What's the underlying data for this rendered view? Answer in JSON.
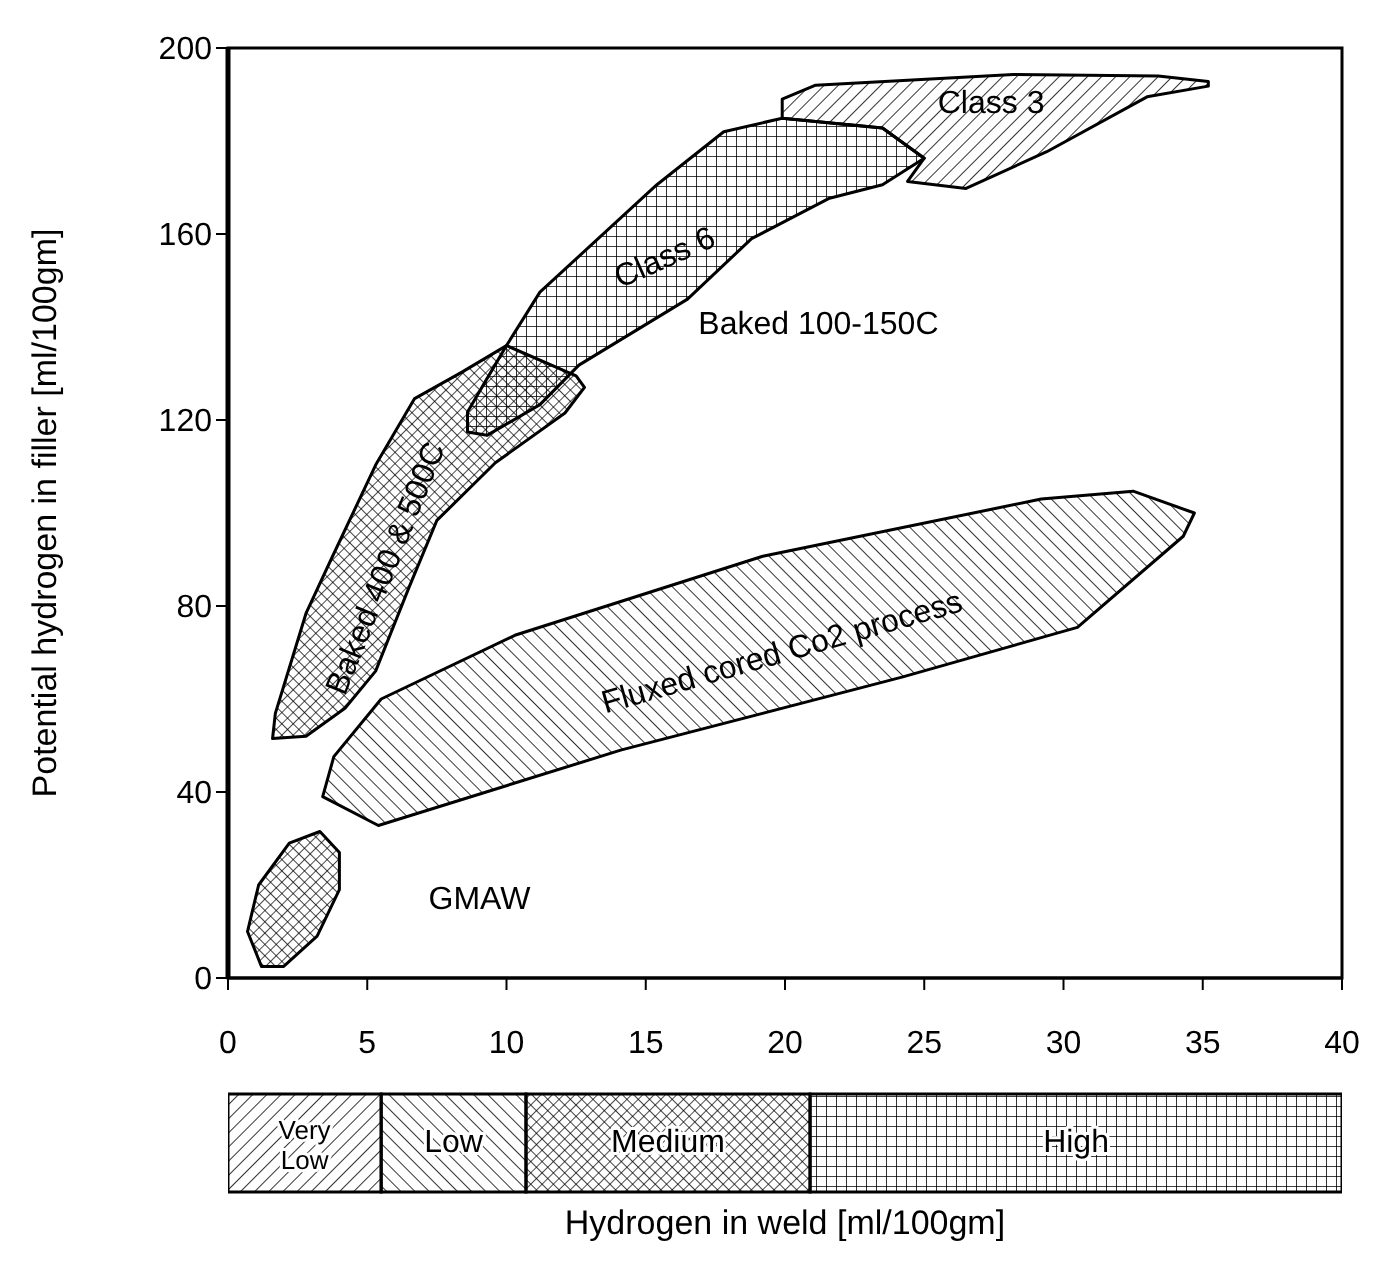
{
  "chart_data": [
    {
      "type": "area",
      "ylabel": "Potential hydrogen in filler [ml/100gm]",
      "xlim": [
        0,
        40
      ],
      "xticks": [
        0,
        5,
        10,
        15,
        20,
        25,
        30,
        35,
        40
      ],
      "ylim": [
        0,
        200
      ],
      "yticks": [
        0,
        40,
        80,
        120,
        160,
        200
      ],
      "series": [
        {
          "color": "#000000",
          "x": [
            19.9,
            21.1,
            28.2,
            33.4,
            35.2,
            35.2,
            33.0,
            29.4,
            26.5,
            24.4,
            25.0,
            23.5,
            19.9
          ],
          "values": [
            189,
            192,
            194.3,
            194,
            192.8,
            191.8,
            189.5,
            177.7,
            169.8,
            171.3,
            176.3,
            182.8,
            184.9
          ]
        },
        {
          "color": "#000000",
          "x": [
            1.6,
            2.8,
            4.2,
            5.3,
            6.5,
            7.5,
            9.6,
            12.1,
            12.8,
            12.5,
            10.0,
            8.4,
            6.7,
            5.3,
            3.7,
            2.8,
            1.7
          ],
          "values": [
            51.5,
            52,
            58,
            66,
            84,
            98.4,
            110.8,
            121.5,
            127,
            129.5,
            136,
            130.3,
            124.6,
            110.3,
            90,
            78.4,
            56.9
          ]
        },
        {
          "color": "#000000",
          "x": [
            8.6,
            9.3,
            11.2,
            12.6,
            16.5,
            18.8,
            21.6,
            23.5,
            25.0,
            23.5,
            19.9,
            17.8,
            15.4,
            11.2,
            10.0,
            9.3,
            8.6
          ],
          "values": [
            117.4,
            116.7,
            123.3,
            131.8,
            146,
            159,
            167.7,
            170.6,
            176.3,
            182.8,
            184.9,
            182,
            170.6,
            147.5,
            136,
            128.9,
            121.7
          ]
        },
        {
          "color": "#000000",
          "x": [
            3.4,
            5.4,
            14.1,
            24.2,
            30.5,
            34.3,
            34.7,
            32.5,
            29.2,
            19.2,
            10.3,
            5.5,
            3.8
          ],
          "values": [
            39,
            32.8,
            49,
            64.7,
            75.4,
            95,
            100,
            104.7,
            103,
            90.7,
            73.7,
            60,
            47.6
          ]
        },
        {
          "color": "#000000",
          "x": [
            3.3,
            4.0,
            4.0,
            3.2,
            2.0,
            1.2,
            0.7,
            1.1,
            2.2
          ],
          "values": [
            31.5,
            27,
            19,
            9,
            2.5,
            2.5,
            10,
            20,
            29
          ]
        }
      ],
      "annotations": [
        "Class 3",
        "Class 6",
        "Baked 100-150C",
        "Baked 400 & 500C",
        "Fluxed cored Co2 process",
        "GMAW"
      ]
    },
    {
      "type": "bar",
      "orientation": "horizontal",
      "stacked": true,
      "categories": [
        null
      ],
      "xlim": [
        0,
        40
      ],
      "tick_labels": false,
      "xlabel": "Hydrogen in weld [ml/100gm]",
      "series": [
        {
          "name": "Very Low",
          "color": "#000000",
          "values": [
            5.5
          ]
        },
        {
          "name": "Low",
          "color": "#000000",
          "values": [
            5.2
          ]
        },
        {
          "name": "Medium",
          "color": "#000000",
          "values": [
            10.2
          ]
        },
        {
          "name": "High",
          "color": "#000000",
          "values": [
            19.1
          ]
        }
      ]
    }
  ]
}
